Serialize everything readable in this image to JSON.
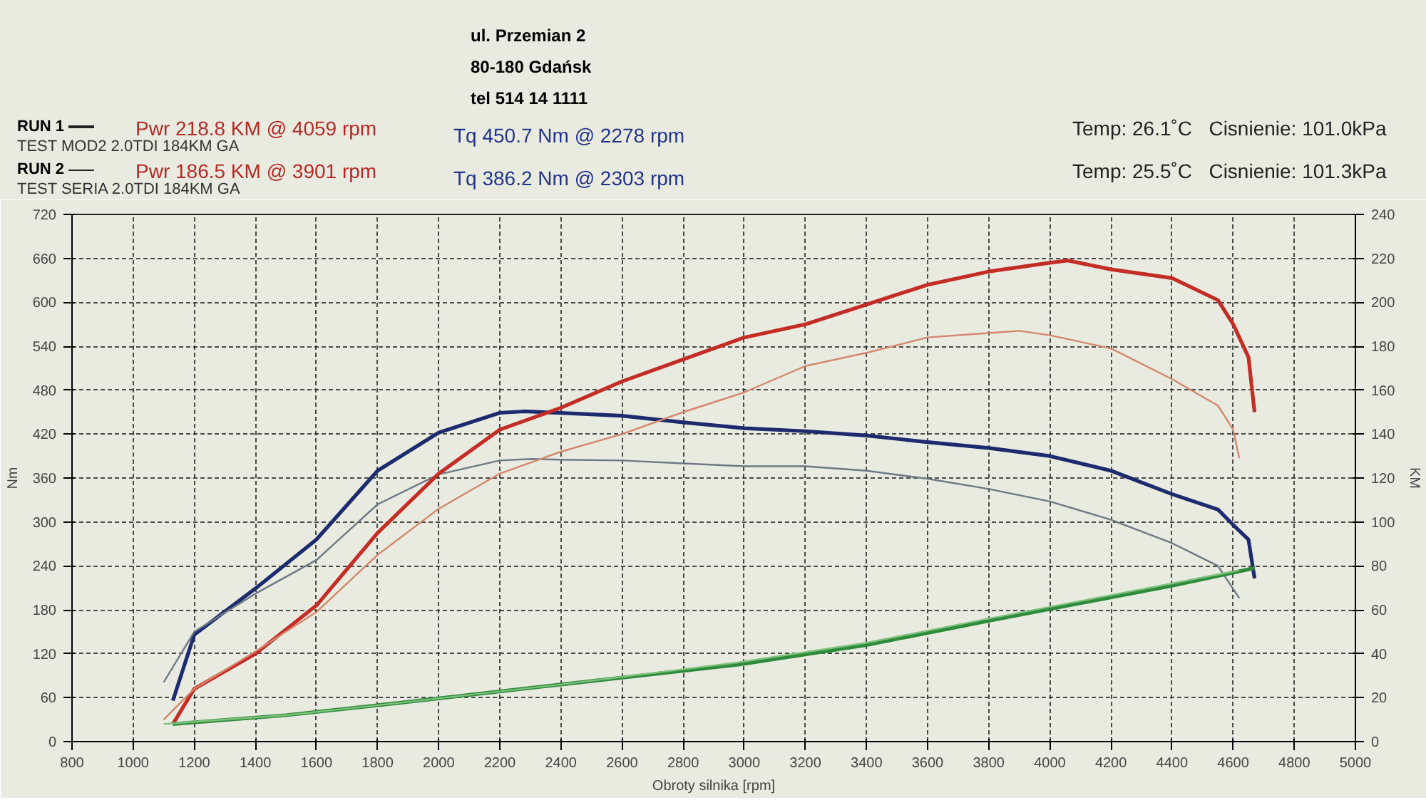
{
  "chart_data": {
    "type": "line",
    "xlabel": "Obroty silnika [rpm]",
    "ylabel": "Nm",
    "y2label": "KM",
    "annotations": [
      "ul. Przemian 2",
      "80-180 Gdańsk",
      "tel 514 14 1111",
      "RUN 1",
      "Pwr  218.8 KM @ 4059 rpm",
      "Tq 450.7 Nm @ 2278 rpm",
      "TEST MOD2 2.0TDI 184KM GA",
      "Temp: 26.1˚C",
      "Cisnienie: 101.0kPa",
      "RUN 2",
      "Pwr  186.5 KM @ 3901 rpm",
      "Tq 386.2 Nm @ 2303 rpm",
      "TEST SERIA 2.0TDI 184KM GA",
      "Temp: 25.5˚C",
      "Cisnienie: 101.3kPa"
    ],
    "xlim": [
      800,
      5000
    ],
    "xticks": [
      800,
      1000,
      1200,
      1400,
      1600,
      1800,
      2000,
      2200,
      2400,
      2600,
      2800,
      3000,
      3200,
      3400,
      3600,
      3800,
      4000,
      4200,
      4400,
      4600,
      4800,
      5000
    ],
    "ylim": [
      0,
      720
    ],
    "yticks": [
      0,
      60,
      120,
      180,
      240,
      300,
      360,
      420,
      480,
      540,
      600,
      660,
      720
    ],
    "y2lim": [
      0,
      240
    ],
    "y2ticks": [
      0,
      20,
      40,
      60,
      80,
      100,
      120,
      140,
      160,
      180,
      200,
      220,
      240
    ],
    "grid": true,
    "marker": "none",
    "line_style": "solid",
    "series": [
      {
        "color": "#1c2a6e",
        "x": [
          1130,
          1200,
          1400,
          1600,
          1800,
          2000,
          2200,
          2278,
          2400,
          2600,
          2800,
          3000,
          3200,
          3400,
          3600,
          3800,
          4000,
          4200,
          4400,
          4550,
          4600,
          4650,
          4670
        ],
        "values": [
          56,
          146,
          209,
          276,
          370,
          422,
          449,
          451,
          449,
          445,
          436,
          428,
          424,
          418,
          409,
          401,
          390,
          370,
          338,
          317,
          296,
          276,
          223
        ]
      },
      {
        "color": "#6e7884",
        "x": [
          1100,
          1200,
          1400,
          1600,
          1800,
          2000,
          2200,
          2303,
          2400,
          2600,
          2800,
          3000,
          3200,
          3400,
          3600,
          3800,
          4000,
          4200,
          4400,
          4550,
          4620
        ],
        "values": [
          81,
          150,
          202,
          248,
          324,
          365,
          384,
          386,
          385,
          384,
          380,
          376,
          376,
          370,
          359,
          345,
          328,
          303,
          271,
          240,
          196
        ]
      },
      {
        "color": "#c42c26",
        "axis": "y2",
        "x": [
          1130,
          1200,
          1400,
          1600,
          1800,
          2000,
          2200,
          2400,
          2600,
          2800,
          3000,
          3200,
          3400,
          3600,
          3800,
          4000,
          4059,
          4200,
          4400,
          4550,
          4600,
          4650,
          4670
        ],
        "values": [
          8,
          24,
          40,
          62,
          95,
          122,
          142,
          152,
          164,
          174,
          184,
          190,
          199,
          208,
          214,
          218,
          219,
          215,
          211,
          201,
          190,
          175,
          150
        ]
      },
      {
        "color": "#d4876c",
        "axis": "y2",
        "x": [
          1100,
          1200,
          1400,
          1600,
          1800,
          2000,
          2200,
          2400,
          2600,
          2800,
          3000,
          3200,
          3400,
          3600,
          3800,
          3901,
          4000,
          4200,
          4400,
          4550,
          4600,
          4620
        ],
        "values": [
          10,
          24,
          41,
          59,
          85,
          106,
          122,
          132,
          140,
          150,
          159,
          171,
          177,
          184,
          186,
          187,
          185,
          179,
          165,
          153,
          142,
          129
        ]
      },
      {
        "color": "#2f8a3c",
        "axis": "y2",
        "x": [
          1130,
          1500,
          1830,
          2400,
          2978,
          3400,
          3800,
          4400,
          4670
        ],
        "values": [
          8,
          12,
          17,
          26,
          35,
          44,
          55,
          71,
          79
        ]
      },
      {
        "color": "#7cc27c",
        "axis": "y2",
        "x": [
          1100,
          1500,
          1830,
          2400,
          2978,
          3400,
          3800,
          4400,
          4620
        ],
        "values": [
          8,
          12,
          17,
          26,
          36,
          45,
          56,
          72,
          78
        ]
      }
    ]
  }
}
